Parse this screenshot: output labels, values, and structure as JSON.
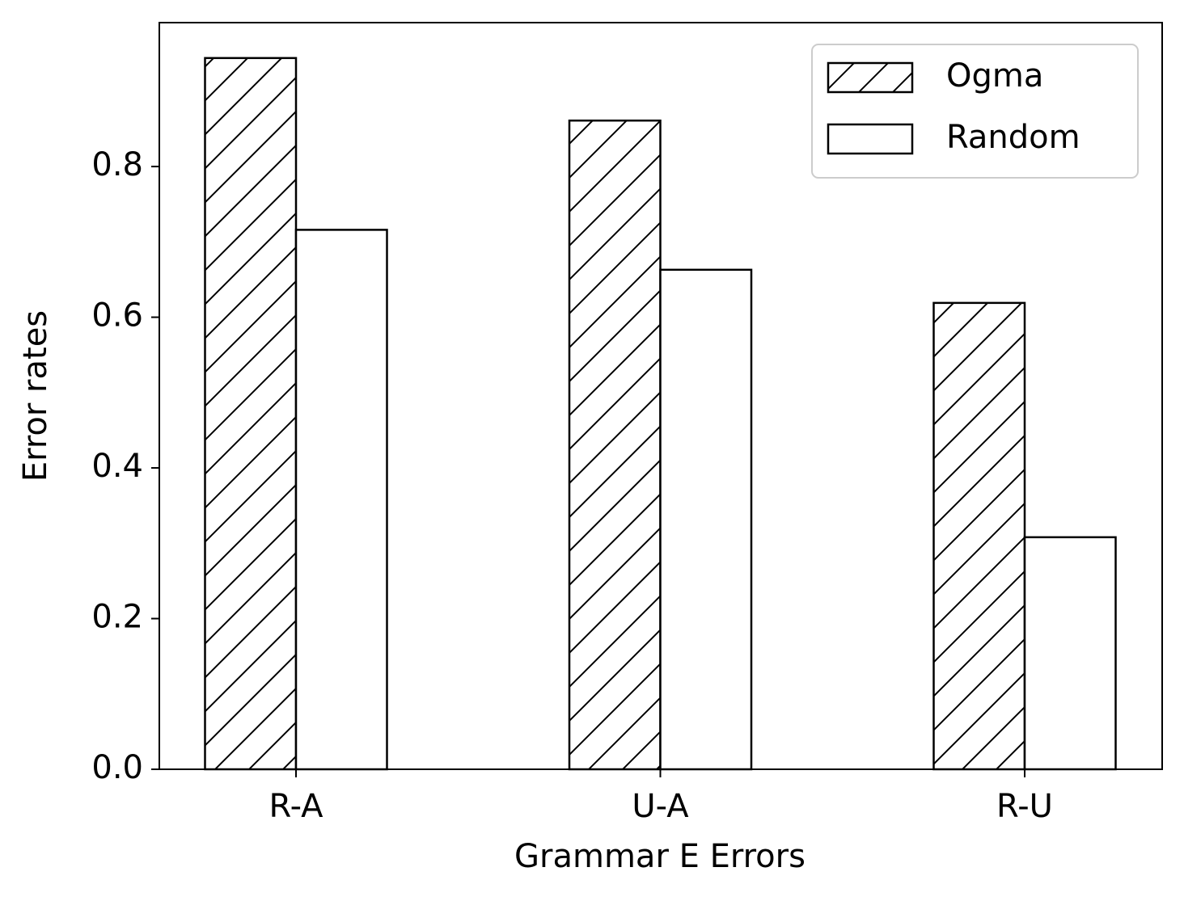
{
  "chart_data": {
    "type": "bar",
    "x_label": "Grammar E Errors",
    "y_label": "Error rates",
    "categories": [
      "R-A",
      "U-A",
      "R-U"
    ],
    "series": [
      {
        "name": "Ogma",
        "color": "#ffffff",
        "hatch": "/",
        "values": [
          0.944,
          0.861,
          0.619
        ]
      },
      {
        "name": "Random",
        "color": "#ffffff",
        "values": [
          0.716,
          0.663,
          0.308
        ]
      }
    ],
    "ylim": [
      0,
      0.991
    ],
    "yticks": [
      {
        "value": 0,
        "label": "0.0"
      },
      0.2,
      0.4,
      0.6,
      0.8
    ],
    "legend": "upper right"
  }
}
